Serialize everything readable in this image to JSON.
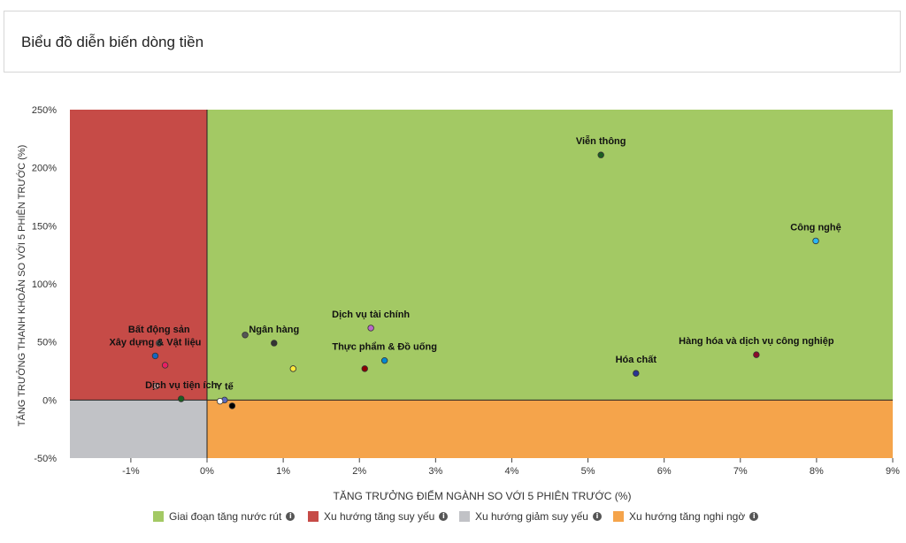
{
  "header": {
    "title": "Biểu đồ diễn biến dòng tiền"
  },
  "chart_data": {
    "type": "scatter",
    "xlabel": "TĂNG TRƯỞNG ĐIỂM NGÀNH SO VỚI 5 PHIÊN TRƯỚC (%)",
    "ylabel": "TĂNG TRƯỞNG THANH KHOẢN SO VỚI 5 PHIÊN TRƯỚC (%)",
    "xlim": [
      -1.8,
      9
    ],
    "ylim": [
      -50,
      250
    ],
    "xticks": [
      -1,
      0,
      1,
      2,
      3,
      4,
      5,
      6,
      7,
      8,
      9
    ],
    "xtick_labels": [
      "-1%",
      "0%",
      "1%",
      "2%",
      "3%",
      "4%",
      "5%",
      "6%",
      "7%",
      "8%",
      "9%"
    ],
    "yticks": [
      -50,
      0,
      50,
      100,
      150,
      200,
      250
    ],
    "ytick_labels": [
      "-50%",
      "0%",
      "50%",
      "100%",
      "150%",
      "200%",
      "250%"
    ],
    "quadrants": [
      {
        "name": "Giai đoạn tăng nước rút",
        "color": "#a3c964"
      },
      {
        "name": "Xu hướng tăng suy yếu",
        "color": "#c64b47"
      },
      {
        "name": "Xu hướng giảm suy yếu",
        "color": "#c1c2c6"
      },
      {
        "name": "Xu hướng tăng nghi ngờ",
        "color": "#f5a44b"
      }
    ],
    "points": [
      {
        "label": "Viễn thông",
        "x": 5.17,
        "y": 211,
        "color": "#1b5e20"
      },
      {
        "label": "Công nghệ",
        "x": 7.99,
        "y": 137,
        "color": "#29b6f6"
      },
      {
        "label": "Hàng hóa và dịch vụ công nghiệp",
        "x": 7.21,
        "y": 39,
        "color": "#8b0a2a"
      },
      {
        "label": "Hóa chất",
        "x": 5.63,
        "y": 23,
        "color": "#283593"
      },
      {
        "label": "Dịch vụ tài chính",
        "x": 2.15,
        "y": 62,
        "color": "#ba68c8"
      },
      {
        "label": "Thực phẩm & Đồ uống",
        "x": 2.33,
        "y": 34,
        "color": "#0288d1"
      },
      {
        "label": "",
        "x": 2.07,
        "y": 27,
        "color": "#8b0000"
      },
      {
        "label": "Ngân hàng",
        "x": 0.88,
        "y": 49,
        "color": "#333333"
      },
      {
        "label": "",
        "x": 0.5,
        "y": 56,
        "color": "#555555"
      },
      {
        "label": "",
        "x": 1.13,
        "y": 27,
        "color": "#ffeb3b"
      },
      {
        "label": "Bất động sản",
        "x": -0.63,
        "y": 49,
        "color": "#555555"
      },
      {
        "label": "Xây dựng & Vật liệu",
        "x": -0.68,
        "y": 38,
        "color": "#1565c0"
      },
      {
        "label": "",
        "x": -0.55,
        "y": 30,
        "color": "#e91e63"
      },
      {
        "label": "",
        "x": -0.67,
        "y": 12,
        "color": "#e0a0a0"
      },
      {
        "label": "Dịch vụ tiện ích",
        "x": -0.34,
        "y": 1,
        "color": "#1b5e20"
      },
      {
        "label": "Y tế",
        "x": 0.23,
        "y": 0,
        "color": "#5c6bc0"
      },
      {
        "label": "",
        "x": 0.17,
        "y": -1,
        "color": "#ffffff"
      },
      {
        "label": "",
        "x": 0.33,
        "y": -5,
        "color": "#000000"
      }
    ],
    "legend_position": "bottom"
  }
}
